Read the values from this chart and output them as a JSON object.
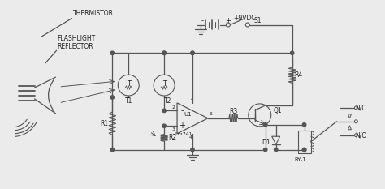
{
  "bg_color": "#ebebeb",
  "line_color": "#555555",
  "text_color": "#222222",
  "fig_w": 4.74,
  "fig_h": 2.33,
  "labels": {
    "thermistor": "THERMISTOR",
    "flashlight": "FLASHLIGHT\nREFLECTOR",
    "T1": "T1",
    "T2": "T2",
    "R1": "R1",
    "R2": "R2",
    "R3": "R3",
    "R4": "R4",
    "U1": "U1",
    "lm741": "Lm741",
    "Q1": "Q1",
    "D1": "D1",
    "S1": "S1",
    "VDC": "+9VDC",
    "RY1": "RY-1",
    "NC": "N/C",
    "NO": "N/O"
  }
}
